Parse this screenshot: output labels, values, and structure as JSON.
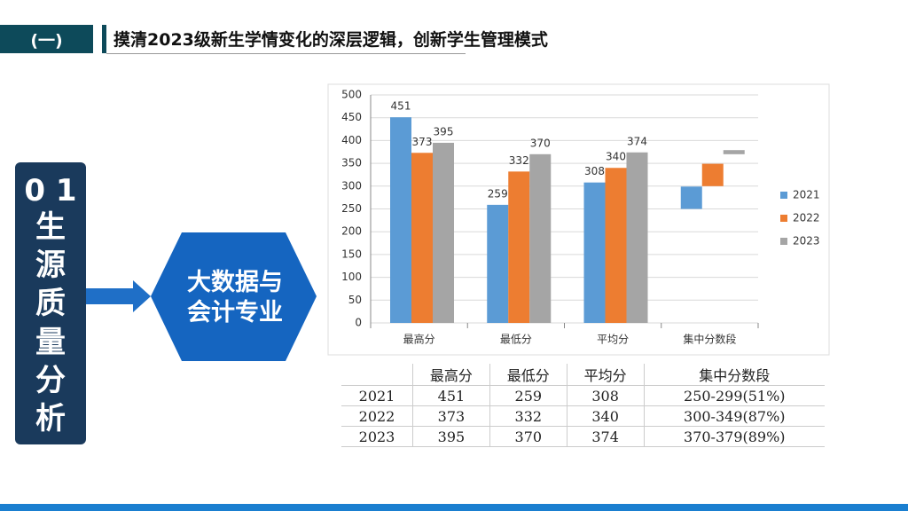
{
  "header": {
    "badge": "(一)",
    "title": "摸清2023级新生学情变化的深层逻辑，创新学生管理模式"
  },
  "section": {
    "number": "0 1",
    "title": "生源质量分析"
  },
  "hexagon": {
    "label": "大数据与会计专业"
  },
  "chart_data": {
    "type": "bar",
    "categories": [
      "最高分",
      "最低分",
      "平均分",
      "集中分数段"
    ],
    "series": [
      {
        "name": "2021",
        "color": "#5b9bd5",
        "values": [
          451,
          259,
          308,
          null
        ],
        "range": [
          250,
          299
        ]
      },
      {
        "name": "2022",
        "color": "#ed7d31",
        "values": [
          373,
          332,
          340,
          null
        ],
        "range": [
          300,
          349
        ]
      },
      {
        "name": "2023",
        "color": "#a5a5a5",
        "values": [
          395,
          370,
          374,
          null
        ],
        "range": [
          370,
          379
        ]
      }
    ],
    "ylim": [
      0,
      500
    ],
    "yticks": [
      0,
      50,
      100,
      150,
      200,
      250,
      300,
      350,
      400,
      450,
      500
    ],
    "grid": true,
    "legend": "right"
  },
  "table": {
    "header": [
      "最高分",
      "最低分",
      "平均分",
      "集中分数段"
    ],
    "rows": [
      [
        "2021",
        451,
        259,
        308,
        "250-299(51%)"
      ],
      [
        "2022",
        373,
        332,
        340,
        "300-349(87%)"
      ],
      [
        "2023",
        395,
        370,
        374,
        "370-379(89%)"
      ]
    ]
  }
}
